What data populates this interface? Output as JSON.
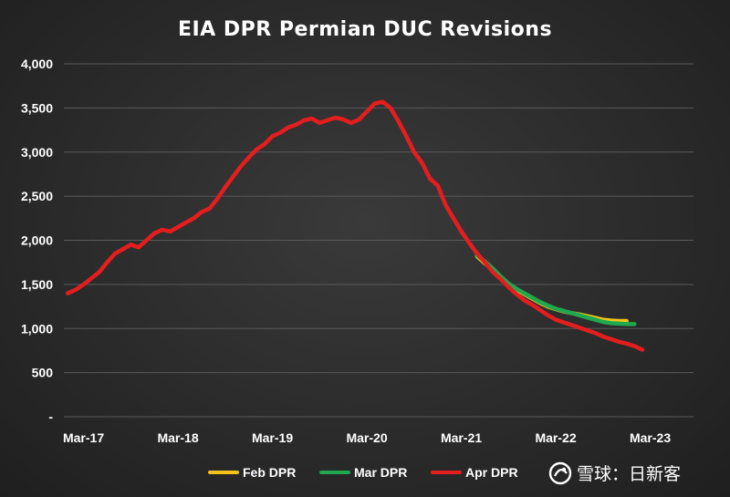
{
  "chart_data": {
    "type": "line",
    "title": "EIA DPR Permian DUC Revisions",
    "xlabel": "",
    "ylabel": "",
    "ylim": [
      0,
      4000
    ],
    "y_ticks": [
      {
        "value": 0,
        "label": "-"
      },
      {
        "value": 500,
        "label": "500"
      },
      {
        "value": 1000,
        "label": "1,000"
      },
      {
        "value": 1500,
        "label": "1,500"
      },
      {
        "value": 2000,
        "label": "2,000"
      },
      {
        "value": 2500,
        "label": "2,500"
      },
      {
        "value": 3000,
        "label": "3,000"
      },
      {
        "value": 3500,
        "label": "3,500"
      },
      {
        "value": 4000,
        "label": "4,000"
      }
    ],
    "x_ticks": [
      {
        "value": "2017-03",
        "label": "Mar-17"
      },
      {
        "value": "2018-03",
        "label": "Mar-18"
      },
      {
        "value": "2019-03",
        "label": "Mar-19"
      },
      {
        "value": "2020-03",
        "label": "Mar-20"
      },
      {
        "value": "2021-03",
        "label": "Mar-21"
      },
      {
        "value": "2022-03",
        "label": "Mar-22"
      },
      {
        "value": "2023-03",
        "label": "Mar-23"
      }
    ],
    "grid": true,
    "legend_position": "bottom",
    "series": [
      {
        "name": "Feb DPR",
        "color": "#f2c21b",
        "x": [
          "2021-05",
          "2021-06",
          "2021-07",
          "2021-08",
          "2021-09",
          "2021-10",
          "2021-11",
          "2021-12",
          "2022-01",
          "2022-02",
          "2022-03",
          "2022-04",
          "2022-05",
          "2022-06",
          "2022-07",
          "2022-08",
          "2022-09",
          "2022-10",
          "2022-11",
          "2022-12"
        ],
        "y": [
          1820,
          1740,
          1670,
          1580,
          1500,
          1440,
          1390,
          1340,
          1290,
          1250,
          1220,
          1195,
          1175,
          1160,
          1140,
          1120,
          1100,
          1090,
          1085,
          1085
        ]
      },
      {
        "name": "Mar DPR",
        "color": "#1fa84d",
        "x": [
          "2021-05",
          "2021-06",
          "2021-07",
          "2021-08",
          "2021-09",
          "2021-10",
          "2021-11",
          "2021-12",
          "2022-01",
          "2022-02",
          "2022-03",
          "2022-04",
          "2022-05",
          "2022-06",
          "2022-07",
          "2022-08",
          "2022-09",
          "2022-10",
          "2022-11",
          "2022-12",
          "2023-01"
        ],
        "y": [
          1830,
          1760,
          1680,
          1590,
          1510,
          1450,
          1400,
          1350,
          1300,
          1260,
          1225,
          1200,
          1175,
          1150,
          1125,
          1100,
          1075,
          1060,
          1055,
          1050,
          1050
        ]
      },
      {
        "name": "Apr DPR",
        "color": "#e41e1e",
        "x": [
          "2017-01",
          "2017-02",
          "2017-03",
          "2017-04",
          "2017-05",
          "2017-06",
          "2017-07",
          "2017-08",
          "2017-09",
          "2017-10",
          "2017-11",
          "2017-12",
          "2018-01",
          "2018-02",
          "2018-03",
          "2018-04",
          "2018-05",
          "2018-06",
          "2018-07",
          "2018-08",
          "2018-09",
          "2018-10",
          "2018-11",
          "2018-12",
          "2019-01",
          "2019-02",
          "2019-03",
          "2019-04",
          "2019-05",
          "2019-06",
          "2019-07",
          "2019-08",
          "2019-09",
          "2019-10",
          "2019-11",
          "2019-12",
          "2020-01",
          "2020-02",
          "2020-03",
          "2020-04",
          "2020-05",
          "2020-06",
          "2020-07",
          "2020-08",
          "2020-09",
          "2020-10",
          "2020-11",
          "2020-12",
          "2021-01",
          "2021-02",
          "2021-03",
          "2021-04",
          "2021-05",
          "2021-06",
          "2021-07",
          "2021-08",
          "2021-09",
          "2021-10",
          "2021-11",
          "2021-12",
          "2022-01",
          "2022-02",
          "2022-03",
          "2022-04",
          "2022-05",
          "2022-06",
          "2022-07",
          "2022-08",
          "2022-09",
          "2022-10",
          "2022-11",
          "2022-12",
          "2023-01",
          "2023-02"
        ],
        "y": [
          1400,
          1440,
          1500,
          1570,
          1640,
          1750,
          1850,
          1900,
          1950,
          1920,
          2000,
          2080,
          2120,
          2100,
          2150,
          2200,
          2250,
          2320,
          2360,
          2470,
          2600,
          2720,
          2840,
          2940,
          3030,
          3090,
          3180,
          3220,
          3280,
          3310,
          3360,
          3380,
          3330,
          3360,
          3390,
          3370,
          3330,
          3370,
          3460,
          3550,
          3570,
          3500,
          3350,
          3180,
          3000,
          2880,
          2700,
          2620,
          2400,
          2250,
          2100,
          1970,
          1850,
          1750,
          1640,
          1560,
          1470,
          1390,
          1320,
          1270,
          1210,
          1150,
          1100,
          1070,
          1040,
          1010,
          980,
          950,
          910,
          880,
          850,
          830,
          800,
          760
        ]
      }
    ]
  },
  "watermark": {
    "text": "雪球：日新客"
  }
}
